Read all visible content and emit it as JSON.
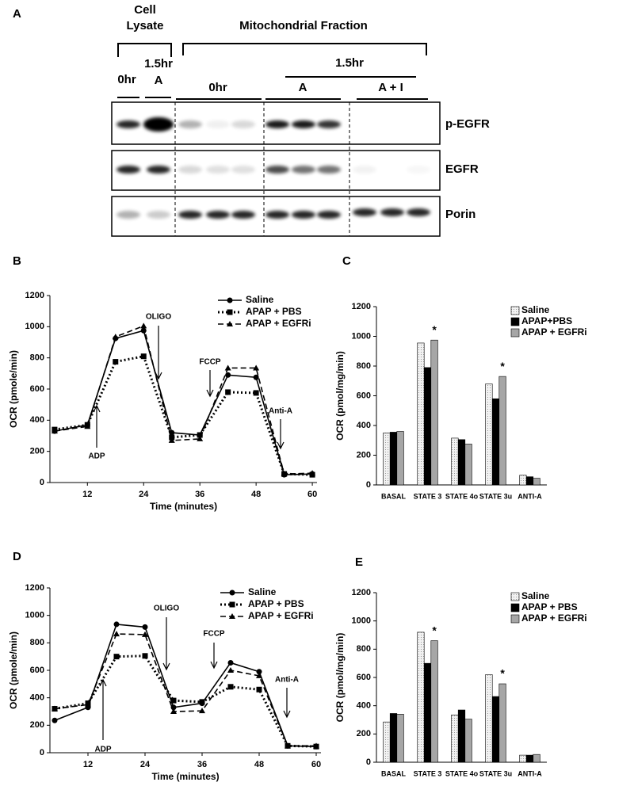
{
  "blot": {
    "panel": "A",
    "header_left": [
      "Cell",
      "Lysate"
    ],
    "header_right": "Mitochondrial Fraction",
    "lysate_labels": [
      "0hr",
      "1.5hr",
      "A"
    ],
    "fraction_time": "1.5hr",
    "fraction_groups": [
      "0hr",
      "A",
      "A + I"
    ],
    "rows": [
      "p-EGFR",
      "EGFR",
      "Porin"
    ]
  },
  "chart_data": [
    {
      "type": "line",
      "panel": "B",
      "x_label": "Time (minutes)",
      "y_label": "OCR (pmole/min)",
      "x": [
        5,
        12,
        18,
        24,
        30,
        36,
        42,
        48,
        54,
        60
      ],
      "xlim": [
        4,
        61
      ],
      "xticks": [
        12,
        24,
        36,
        48,
        60
      ],
      "ylim": [
        0,
        1200
      ],
      "yticks": [
        0,
        200,
        400,
        600,
        800,
        1000,
        1200
      ],
      "annotations": [
        "ADP",
        "OLIGO",
        "FCCP",
        "Anti-A"
      ],
      "series": [
        {
          "name": "Saline",
          "color": "#000000",
          "style": "solid",
          "marker": "circle",
          "values": [
            330,
            370,
            925,
            975,
            320,
            305,
            690,
            675,
            50,
            55
          ]
        },
        {
          "name": "APAP + PBS",
          "color": "#000000",
          "style": "dotted",
          "marker": "square",
          "values": [
            340,
            370,
            775,
            810,
            290,
            305,
            580,
            575,
            55,
            50
          ]
        },
        {
          "name": "APAP + EGFRi",
          "color": "#000000",
          "style": "dashed",
          "marker": "triangle",
          "values": [
            330,
            360,
            935,
            1005,
            270,
            280,
            735,
            735,
            55,
            60
          ]
        }
      ]
    },
    {
      "type": "bar",
      "panel": "C",
      "y_label": "OCR (pmol/mg/min)",
      "categories": [
        "BASAL",
        "STATE 3",
        "STATE 4o",
        "STATE 3u",
        "ANTI-A"
      ],
      "ylim": [
        0,
        1200
      ],
      "yticks": [
        0,
        200,
        400,
        600,
        800,
        1000,
        1200
      ],
      "annotations": [
        null,
        "*",
        null,
        "*",
        null
      ],
      "series": [
        {
          "name": "Saline",
          "color": "#e8e8e8",
          "values": [
            350,
            955,
            315,
            680,
            65
          ]
        },
        {
          "name": "APAP+PBS",
          "color": "#000000",
          "values": [
            355,
            790,
            305,
            580,
            55
          ]
        },
        {
          "name": "APAP + EGFRi",
          "color": "#a6a6a6",
          "values": [
            360,
            975,
            275,
            730,
            45
          ]
        }
      ]
    },
    {
      "type": "line",
      "panel": "D",
      "x_label": "Time (minutes)",
      "y_label": "OCR (pmole/min)",
      "x": [
        5,
        12,
        18,
        24,
        30,
        36,
        42,
        48,
        54,
        60
      ],
      "xlim": [
        4,
        61
      ],
      "xticks": [
        12,
        24,
        36,
        48,
        60
      ],
      "ylim": [
        0,
        1200
      ],
      "yticks": [
        0,
        200,
        400,
        600,
        800,
        1000,
        1200
      ],
      "annotations": [
        "ADP",
        "OLIGO",
        "FCCP",
        "Anti-A"
      ],
      "series": [
        {
          "name": "Saline",
          "color": "#000000",
          "style": "solid",
          "marker": "circle",
          "values": [
            235,
            330,
            935,
            915,
            330,
            360,
            655,
            590,
            50,
            45
          ]
        },
        {
          "name": "APAP + PBS",
          "color": "#000000",
          "style": "dotted",
          "marker": "square",
          "values": [
            320,
            360,
            700,
            705,
            380,
            370,
            480,
            460,
            50,
            45
          ]
        },
        {
          "name": "APAP + EGFRi",
          "color": "#000000",
          "style": "dashed",
          "marker": "triangle",
          "values": [
            320,
            350,
            865,
            860,
            300,
            305,
            600,
            560,
            50,
            50
          ]
        }
      ]
    },
    {
      "type": "bar",
      "panel": "E",
      "y_label": "OCR (pmol/mg/min)",
      "categories": [
        "BASAL",
        "STATE 3",
        "STATE 4o",
        "STATE 3u",
        "ANTI-A"
      ],
      "ylim": [
        0,
        1200
      ],
      "yticks": [
        0,
        200,
        400,
        600,
        800,
        1000,
        1200
      ],
      "annotations": [
        null,
        "*",
        null,
        "*",
        null
      ],
      "series": [
        {
          "name": "Saline",
          "color": "#e8e8e8",
          "values": [
            285,
            920,
            335,
            620,
            50
          ]
        },
        {
          "name": "APAP + PBS",
          "color": "#000000",
          "values": [
            345,
            700,
            370,
            465,
            50
          ]
        },
        {
          "name": "APAP + EGFRi",
          "color": "#a6a6a6",
          "values": [
            340,
            860,
            305,
            555,
            55
          ]
        }
      ]
    }
  ]
}
